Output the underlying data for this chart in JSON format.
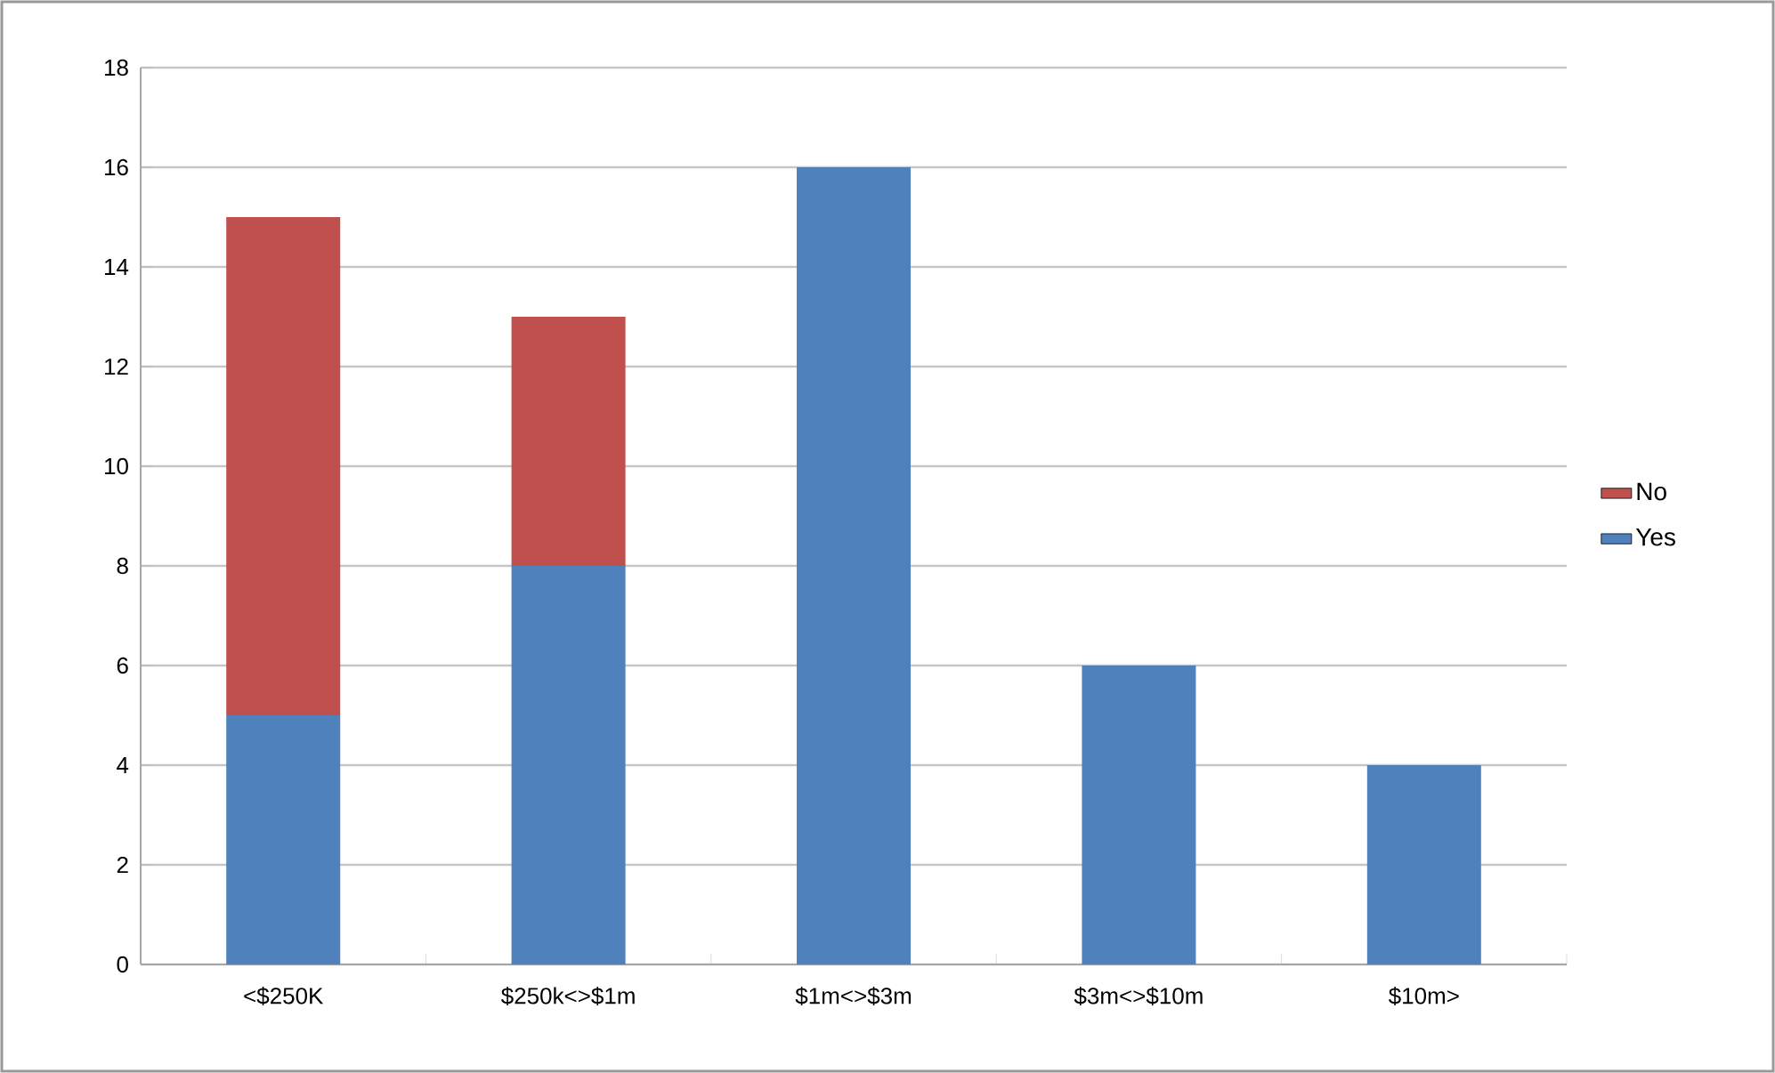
{
  "chart_data": {
    "type": "bar",
    "stacked": true,
    "categories": [
      "<$250K",
      "$250k<>$1m",
      "$1m<>$3m",
      "$3m<>$10m",
      "$10m>"
    ],
    "series": [
      {
        "name": "Yes",
        "color": "#4f81bd",
        "values": [
          5,
          8,
          16,
          6,
          4
        ]
      },
      {
        "name": "No",
        "color": "#c0504d",
        "values": [
          10,
          5,
          0,
          0,
          0
        ]
      }
    ],
    "ylim": [
      0,
      18
    ],
    "yticks": [
      0,
      2,
      4,
      6,
      8,
      10,
      12,
      14,
      16,
      18
    ],
    "grid": "y",
    "legend": "right"
  }
}
